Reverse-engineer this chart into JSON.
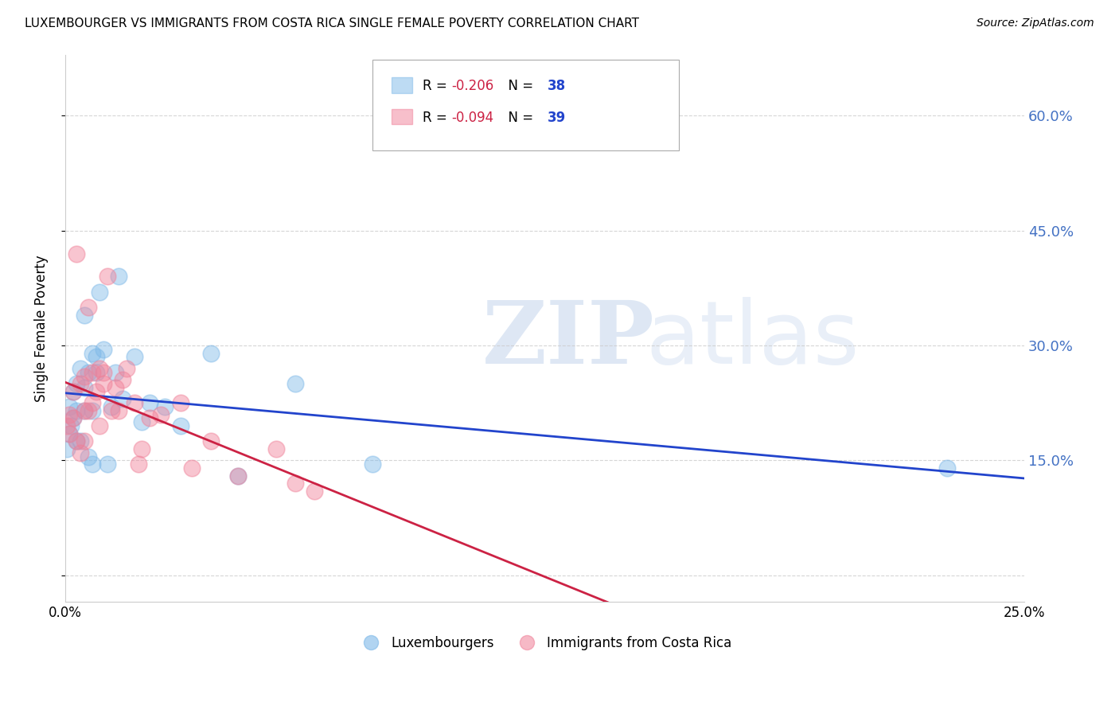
{
  "title": "LUXEMBOURGER VS IMMIGRANTS FROM COSTA RICA SINGLE FEMALE POVERTY CORRELATION CHART",
  "source": "Source: ZipAtlas.com",
  "ylabel": "Single Female Poverty",
  "y_ticks": [
    0.0,
    0.15,
    0.3,
    0.45,
    0.6
  ],
  "y_tick_labels": [
    "",
    "15.0%",
    "30.0%",
    "45.0%",
    "60.0%"
  ],
  "xlim": [
    0.0,
    0.25
  ],
  "ylim": [
    -0.035,
    0.68
  ],
  "lux_color": "#7db8e8",
  "cr_color": "#f08098",
  "lux_line_color": "#2244cc",
  "cr_line_color": "#cc2244",
  "lux_R": -0.206,
  "cr_R": -0.094,
  "lux_N": 38,
  "cr_N": 39,
  "lux_x": [
    0.0005,
    0.001,
    0.001,
    0.0015,
    0.002,
    0.002,
    0.003,
    0.003,
    0.003,
    0.004,
    0.004,
    0.005,
    0.005,
    0.005,
    0.006,
    0.006,
    0.007,
    0.007,
    0.007,
    0.008,
    0.008,
    0.009,
    0.01,
    0.011,
    0.012,
    0.013,
    0.014,
    0.015,
    0.018,
    0.02,
    0.022,
    0.026,
    0.03,
    0.038,
    0.045,
    0.06,
    0.08,
    0.23
  ],
  "lux_y": [
    0.165,
    0.185,
    0.22,
    0.195,
    0.205,
    0.24,
    0.175,
    0.215,
    0.25,
    0.175,
    0.27,
    0.215,
    0.245,
    0.34,
    0.155,
    0.265,
    0.145,
    0.215,
    0.29,
    0.265,
    0.285,
    0.37,
    0.295,
    0.145,
    0.22,
    0.265,
    0.39,
    0.23,
    0.285,
    0.2,
    0.225,
    0.22,
    0.195,
    0.29,
    0.13,
    0.25,
    0.145,
    0.14
  ],
  "cr_x": [
    0.0005,
    0.001,
    0.001,
    0.002,
    0.002,
    0.003,
    0.003,
    0.004,
    0.004,
    0.005,
    0.005,
    0.005,
    0.006,
    0.006,
    0.007,
    0.007,
    0.008,
    0.009,
    0.009,
    0.01,
    0.01,
    0.011,
    0.012,
    0.013,
    0.014,
    0.015,
    0.016,
    0.018,
    0.019,
    0.02,
    0.022,
    0.025,
    0.03,
    0.033,
    0.038,
    0.045,
    0.055,
    0.06,
    0.065
  ],
  "cr_y": [
    0.195,
    0.185,
    0.21,
    0.205,
    0.24,
    0.175,
    0.42,
    0.16,
    0.25,
    0.215,
    0.26,
    0.175,
    0.35,
    0.215,
    0.225,
    0.265,
    0.24,
    0.27,
    0.195,
    0.25,
    0.265,
    0.39,
    0.215,
    0.245,
    0.215,
    0.255,
    0.27,
    0.225,
    0.145,
    0.165,
    0.205,
    0.21,
    0.225,
    0.14,
    0.175,
    0.13,
    0.165,
    0.12,
    0.11
  ],
  "watermark_zip": "ZIP",
  "watermark_atlas": "atlas",
  "background_color": "#ffffff",
  "grid_color": "#cccccc",
  "right_axis_color": "#4472c4",
  "legend_r_color": "#cc2244",
  "legend_n_color": "#2244cc",
  "legend_box_border": "#aaaaaa"
}
